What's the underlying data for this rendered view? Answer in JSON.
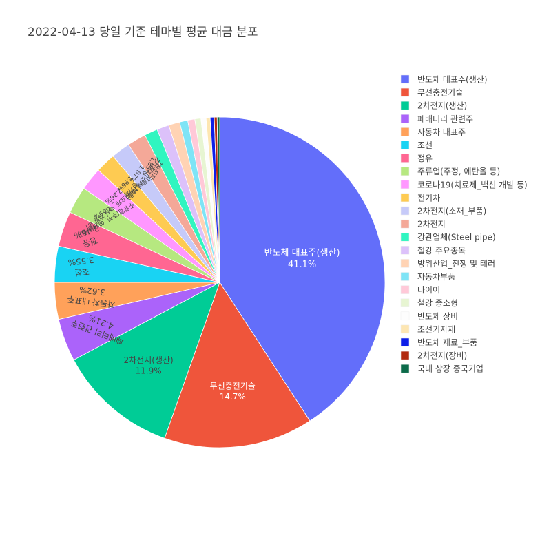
{
  "chart_data": {
    "type": "pie",
    "title": "2022-04-13 당일 기준 테마별 평균 대금 분포",
    "legend_position": "right",
    "direction": "clockwise",
    "slices": [
      {
        "label": "반도체 대표주(생산)",
        "value": 41.1,
        "percent_text": "41.1%",
        "color": "#636efa"
      },
      {
        "label": "무선충전기술",
        "value": 14.7,
        "percent_text": "14.7%",
        "color": "#ef553b"
      },
      {
        "label": "2차전지(생산)",
        "value": 11.9,
        "percent_text": "11.9%",
        "color": "#00cc96"
      },
      {
        "label": "폐배터리 관련주",
        "value": 4.21,
        "percent_text": "4.21%",
        "color": "#ab63fa"
      },
      {
        "label": "자동차 대표주",
        "value": 3.62,
        "percent_text": "3.62%",
        "color": "#ffa15a"
      },
      {
        "label": "조선",
        "value": 3.55,
        "percent_text": "3.55%",
        "color": "#19d3f3"
      },
      {
        "label": "정유",
        "value": 3.46,
        "percent_text": "3.46%",
        "color": "#ff6692"
      },
      {
        "label": "주류업(주정, 에탄올 등)",
        "value": 2.69,
        "percent_text": "2.69%",
        "color": "#b6e880"
      },
      {
        "label": "코로나19(치료제_백신 개발 등)",
        "value": 2.26,
        "percent_text": "2.26%",
        "color": "#ff97ff"
      },
      {
        "label": "전기차",
        "value": 1.96,
        "percent_text": "1.96%",
        "color": "#fecb52"
      },
      {
        "label": "2차전지(소재_부품)",
        "value": 1.87,
        "percent_text": "1.87%",
        "color": "#c6caf9"
      },
      {
        "label": "2차전지",
        "value": 1.85,
        "percent_text": "1.85%",
        "color": "#f4a898"
      },
      {
        "label": "강관업체(Steel pipe)",
        "value": 1.3,
        "color": "#30f5c0"
      },
      {
        "label": "철강 주요종목",
        "value": 1.2,
        "color": "#dcc1fa"
      },
      {
        "label": "방위산업_전쟁 및 테러",
        "value": 1.1,
        "color": "#ffd3b4"
      },
      {
        "label": "자동차부품",
        "value": 0.8,
        "color": "#7fe4f6"
      },
      {
        "label": "타이어",
        "value": 0.7,
        "color": "#ffc9d8"
      },
      {
        "label": "철강 중소형",
        "value": 0.6,
        "color": "#e7f5d2"
      },
      {
        "label": "반도체 장비",
        "value": 0.5,
        "color": "#fdfdfd"
      },
      {
        "label": "조선기자재",
        "value": 0.4,
        "color": "#fde6b2"
      },
      {
        "label": "반도체 재료_부품",
        "value": 0.4,
        "color": "#0d1ee8"
      },
      {
        "label": "2차전지(장비)",
        "value": 0.28,
        "color": "#b2290f"
      },
      {
        "label": "국내 상장 중국기업",
        "value": 0.25,
        "color": "#0c6b4a"
      }
    ]
  }
}
